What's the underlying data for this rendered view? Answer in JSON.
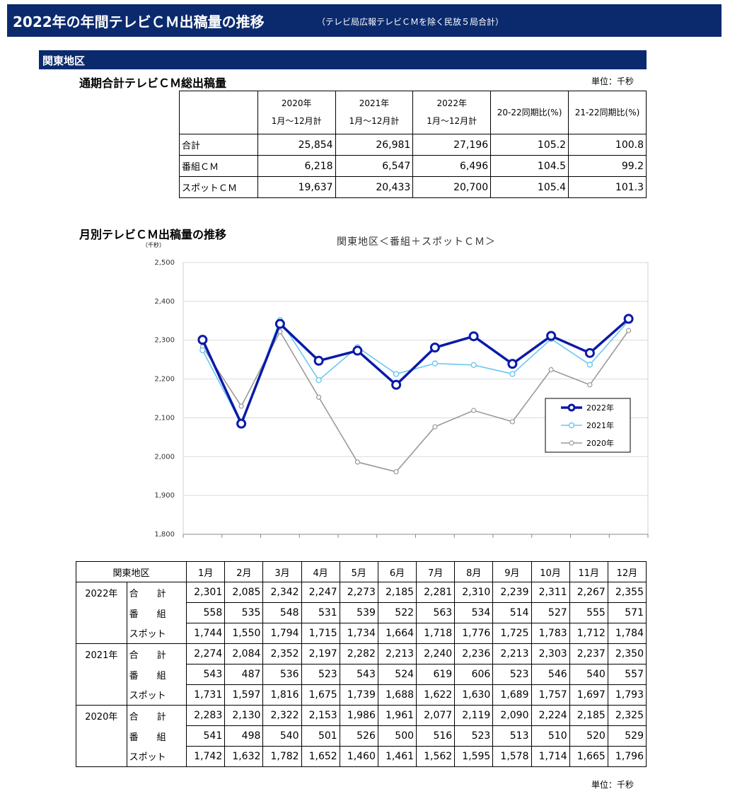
{
  "header": {
    "title": "2022年の年間テレビＣＭ出稿量の推移",
    "subtitle": "（テレビ局広報テレビＣＭを除く民放５局合計）"
  },
  "region": "関東地区",
  "summary": {
    "title": "通期合計テレビＣＭ総出稿量",
    "unit": "単位：千秒",
    "columns": [
      {
        "line1": "2020年",
        "line2": "1月～12月計"
      },
      {
        "line1": "2021年",
        "line2": "1月～12月計"
      },
      {
        "line1": "2022年",
        "line2": "1月～12月計"
      },
      {
        "line1": "20-22同期比(%)",
        "line2": ""
      },
      {
        "line1": "21-22同期比(%)",
        "line2": ""
      }
    ],
    "rows": [
      {
        "label": "合計",
        "values": [
          "25,854",
          "26,981",
          "27,196",
          "105.2",
          "100.8"
        ]
      },
      {
        "label": "番組ＣＭ",
        "values": [
          "6,218",
          "6,547",
          "6,496",
          "104.5",
          "99.2"
        ]
      },
      {
        "label": "スポットＣＭ",
        "values": [
          "19,637",
          "20,433",
          "20,700",
          "105.4",
          "101.3"
        ]
      }
    ]
  },
  "monthly_section": {
    "title": "月別テレビＣＭ出稿量の推移",
    "unit_small": "（千秒）"
  },
  "chart_data": {
    "type": "line",
    "title": "関東地区＜番組＋スポットＣＭ＞",
    "ylabel": "（千秒）",
    "ylim": [
      1800,
      2500
    ],
    "yticks": [
      "1,800",
      "1,900",
      "2,000",
      "2,100",
      "2,200",
      "2,300",
      "2,400",
      "2,500"
    ],
    "ytick_values": [
      1800,
      1900,
      2000,
      2100,
      2200,
      2300,
      2400,
      2500
    ],
    "categories": [
      "1月",
      "2月",
      "3月",
      "4月",
      "5月",
      "6月",
      "7月",
      "8月",
      "9月",
      "10月",
      "11月",
      "12月"
    ],
    "grid": true,
    "legend": "right",
    "series": [
      {
        "name": "2022年",
        "color": "#0a1aa8",
        "values": [
          2301,
          2085,
          2342,
          2247,
          2273,
          2185,
          2281,
          2310,
          2239,
          2311,
          2267,
          2355
        ]
      },
      {
        "name": "2021年",
        "color": "#6cc8f0",
        "values": [
          2274,
          2084,
          2352,
          2197,
          2282,
          2213,
          2240,
          2236,
          2213,
          2303,
          2237,
          2350
        ]
      },
      {
        "name": "2020年",
        "color": "#9a9a9a",
        "values": [
          2283,
          2130,
          2322,
          2153,
          1986,
          1961,
          2077,
          2119,
          2090,
          2224,
          2185,
          2325
        ]
      }
    ]
  },
  "monthly_table": {
    "corner": "関東地区",
    "months": [
      "1月",
      "2月",
      "3月",
      "4月",
      "5月",
      "6月",
      "7月",
      "8月",
      "9月",
      "10月",
      "11月",
      "12月"
    ],
    "years": [
      {
        "year": "2022年",
        "rows": [
          {
            "label": "合　　計",
            "values": [
              "2,301",
              "2,085",
              "2,342",
              "2,247",
              "2,273",
              "2,185",
              "2,281",
              "2,310",
              "2,239",
              "2,311",
              "2,267",
              "2,355"
            ]
          },
          {
            "label": "番　　組",
            "values": [
              "558",
              "535",
              "548",
              "531",
              "539",
              "522",
              "563",
              "534",
              "514",
              "527",
              "555",
              "571"
            ]
          },
          {
            "label": "スポット",
            "values": [
              "1,744",
              "1,550",
              "1,794",
              "1,715",
              "1,734",
              "1,664",
              "1,718",
              "1,776",
              "1,725",
              "1,783",
              "1,712",
              "1,784"
            ]
          }
        ]
      },
      {
        "year": "2021年",
        "rows": [
          {
            "label": "合　　計",
            "values": [
              "2,274",
              "2,084",
              "2,352",
              "2,197",
              "2,282",
              "2,213",
              "2,240",
              "2,236",
              "2,213",
              "2,303",
              "2,237",
              "2,350"
            ]
          },
          {
            "label": "番　　組",
            "values": [
              "543",
              "487",
              "536",
              "523",
              "543",
              "524",
              "619",
              "606",
              "523",
              "546",
              "540",
              "557"
            ]
          },
          {
            "label": "スポット",
            "values": [
              "1,731",
              "1,597",
              "1,816",
              "1,675",
              "1,739",
              "1,688",
              "1,622",
              "1,630",
              "1,689",
              "1,757",
              "1,697",
              "1,793"
            ]
          }
        ]
      },
      {
        "year": "2020年",
        "rows": [
          {
            "label": "合　　計",
            "values": [
              "2,283",
              "2,130",
              "2,322",
              "2,153",
              "1,986",
              "1,961",
              "2,077",
              "2,119",
              "2,090",
              "2,224",
              "2,185",
              "2,325"
            ]
          },
          {
            "label": "番　　組",
            "values": [
              "541",
              "498",
              "540",
              "501",
              "526",
              "500",
              "516",
              "523",
              "513",
              "510",
              "520",
              "529"
            ]
          },
          {
            "label": "スポット",
            "values": [
              "1,742",
              "1,632",
              "1,782",
              "1,652",
              "1,460",
              "1,461",
              "1,562",
              "1,595",
              "1,578",
              "1,714",
              "1,665",
              "1,796"
            ]
          }
        ]
      }
    ],
    "unit": "単位：千秒"
  }
}
